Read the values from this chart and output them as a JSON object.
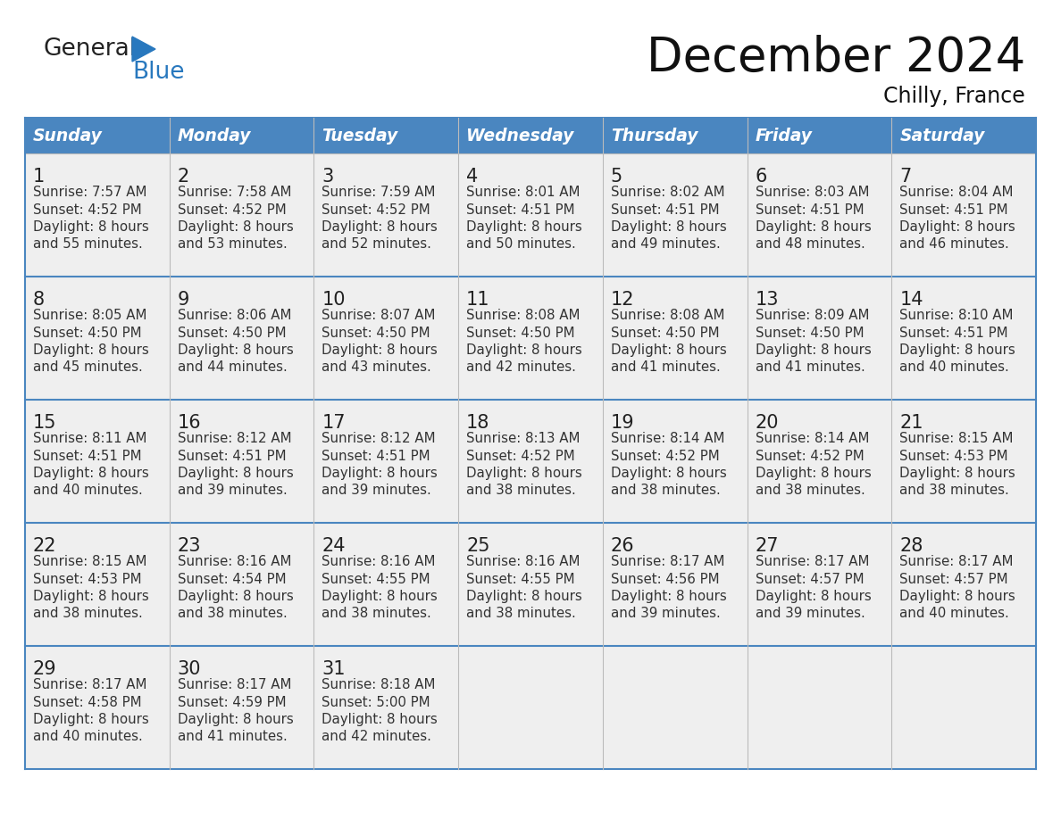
{
  "title": "December 2024",
  "subtitle": "Chilly, France",
  "days_of_week": [
    "Sunday",
    "Monday",
    "Tuesday",
    "Wednesday",
    "Thursday",
    "Friday",
    "Saturday"
  ],
  "header_bg": "#4A86C0",
  "header_text_color": "#FFFFFF",
  "cell_bg": "#EFEFEF",
  "border_color": "#4A86C0",
  "day_number_color": "#222222",
  "cell_text_color": "#333333",
  "title_color": "#111111",
  "subtitle_color": "#111111",
  "logo_general_color": "#222222",
  "logo_blue_color": "#2878BE",
  "weeks": [
    [
      {
        "day": 1,
        "sunrise": "7:57 AM",
        "sunset": "4:52 PM",
        "daylight_line1": "Daylight: 8 hours",
        "daylight_line2": "and 55 minutes."
      },
      {
        "day": 2,
        "sunrise": "7:58 AM",
        "sunset": "4:52 PM",
        "daylight_line1": "Daylight: 8 hours",
        "daylight_line2": "and 53 minutes."
      },
      {
        "day": 3,
        "sunrise": "7:59 AM",
        "sunset": "4:52 PM",
        "daylight_line1": "Daylight: 8 hours",
        "daylight_line2": "and 52 minutes."
      },
      {
        "day": 4,
        "sunrise": "8:01 AM",
        "sunset": "4:51 PM",
        "daylight_line1": "Daylight: 8 hours",
        "daylight_line2": "and 50 minutes."
      },
      {
        "day": 5,
        "sunrise": "8:02 AM",
        "sunset": "4:51 PM",
        "daylight_line1": "Daylight: 8 hours",
        "daylight_line2": "and 49 minutes."
      },
      {
        "day": 6,
        "sunrise": "8:03 AM",
        "sunset": "4:51 PM",
        "daylight_line1": "Daylight: 8 hours",
        "daylight_line2": "and 48 minutes."
      },
      {
        "day": 7,
        "sunrise": "8:04 AM",
        "sunset": "4:51 PM",
        "daylight_line1": "Daylight: 8 hours",
        "daylight_line2": "and 46 minutes."
      }
    ],
    [
      {
        "day": 8,
        "sunrise": "8:05 AM",
        "sunset": "4:50 PM",
        "daylight_line1": "Daylight: 8 hours",
        "daylight_line2": "and 45 minutes."
      },
      {
        "day": 9,
        "sunrise": "8:06 AM",
        "sunset": "4:50 PM",
        "daylight_line1": "Daylight: 8 hours",
        "daylight_line2": "and 44 minutes."
      },
      {
        "day": 10,
        "sunrise": "8:07 AM",
        "sunset": "4:50 PM",
        "daylight_line1": "Daylight: 8 hours",
        "daylight_line2": "and 43 minutes."
      },
      {
        "day": 11,
        "sunrise": "8:08 AM",
        "sunset": "4:50 PM",
        "daylight_line1": "Daylight: 8 hours",
        "daylight_line2": "and 42 minutes."
      },
      {
        "day": 12,
        "sunrise": "8:08 AM",
        "sunset": "4:50 PM",
        "daylight_line1": "Daylight: 8 hours",
        "daylight_line2": "and 41 minutes."
      },
      {
        "day": 13,
        "sunrise": "8:09 AM",
        "sunset": "4:50 PM",
        "daylight_line1": "Daylight: 8 hours",
        "daylight_line2": "and 41 minutes."
      },
      {
        "day": 14,
        "sunrise": "8:10 AM",
        "sunset": "4:51 PM",
        "daylight_line1": "Daylight: 8 hours",
        "daylight_line2": "and 40 minutes."
      }
    ],
    [
      {
        "day": 15,
        "sunrise": "8:11 AM",
        "sunset": "4:51 PM",
        "daylight_line1": "Daylight: 8 hours",
        "daylight_line2": "and 40 minutes."
      },
      {
        "day": 16,
        "sunrise": "8:12 AM",
        "sunset": "4:51 PM",
        "daylight_line1": "Daylight: 8 hours",
        "daylight_line2": "and 39 minutes."
      },
      {
        "day": 17,
        "sunrise": "8:12 AM",
        "sunset": "4:51 PM",
        "daylight_line1": "Daylight: 8 hours",
        "daylight_line2": "and 39 minutes."
      },
      {
        "day": 18,
        "sunrise": "8:13 AM",
        "sunset": "4:52 PM",
        "daylight_line1": "Daylight: 8 hours",
        "daylight_line2": "and 38 minutes."
      },
      {
        "day": 19,
        "sunrise": "8:14 AM",
        "sunset": "4:52 PM",
        "daylight_line1": "Daylight: 8 hours",
        "daylight_line2": "and 38 minutes."
      },
      {
        "day": 20,
        "sunrise": "8:14 AM",
        "sunset": "4:52 PM",
        "daylight_line1": "Daylight: 8 hours",
        "daylight_line2": "and 38 minutes."
      },
      {
        "day": 21,
        "sunrise": "8:15 AM",
        "sunset": "4:53 PM",
        "daylight_line1": "Daylight: 8 hours",
        "daylight_line2": "and 38 minutes."
      }
    ],
    [
      {
        "day": 22,
        "sunrise": "8:15 AM",
        "sunset": "4:53 PM",
        "daylight_line1": "Daylight: 8 hours",
        "daylight_line2": "and 38 minutes."
      },
      {
        "day": 23,
        "sunrise": "8:16 AM",
        "sunset": "4:54 PM",
        "daylight_line1": "Daylight: 8 hours",
        "daylight_line2": "and 38 minutes."
      },
      {
        "day": 24,
        "sunrise": "8:16 AM",
        "sunset": "4:55 PM",
        "daylight_line1": "Daylight: 8 hours",
        "daylight_line2": "and 38 minutes."
      },
      {
        "day": 25,
        "sunrise": "8:16 AM",
        "sunset": "4:55 PM",
        "daylight_line1": "Daylight: 8 hours",
        "daylight_line2": "and 38 minutes."
      },
      {
        "day": 26,
        "sunrise": "8:17 AM",
        "sunset": "4:56 PM",
        "daylight_line1": "Daylight: 8 hours",
        "daylight_line2": "and 39 minutes."
      },
      {
        "day": 27,
        "sunrise": "8:17 AM",
        "sunset": "4:57 PM",
        "daylight_line1": "Daylight: 8 hours",
        "daylight_line2": "and 39 minutes."
      },
      {
        "day": 28,
        "sunrise": "8:17 AM",
        "sunset": "4:57 PM",
        "daylight_line1": "Daylight: 8 hours",
        "daylight_line2": "and 40 minutes."
      }
    ],
    [
      {
        "day": 29,
        "sunrise": "8:17 AM",
        "sunset": "4:58 PM",
        "daylight_line1": "Daylight: 8 hours",
        "daylight_line2": "and 40 minutes."
      },
      {
        "day": 30,
        "sunrise": "8:17 AM",
        "sunset": "4:59 PM",
        "daylight_line1": "Daylight: 8 hours",
        "daylight_line2": "and 41 minutes."
      },
      {
        "day": 31,
        "sunrise": "8:18 AM",
        "sunset": "5:00 PM",
        "daylight_line1": "Daylight: 8 hours",
        "daylight_line2": "and 42 minutes."
      },
      null,
      null,
      null,
      null
    ]
  ]
}
